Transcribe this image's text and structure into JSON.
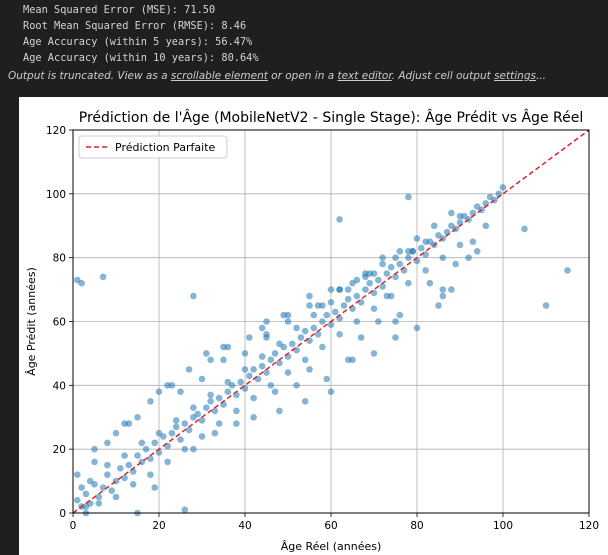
{
  "output": {
    "lines": [
      "Mean Squared Error (MSE): 71.50",
      "Root Mean Squared Error (RMSE): 8.46",
      "Age Accuracy (within 5 years): 56.47%",
      "Age Accuracy (within 10 years): 80.64%"
    ],
    "truncated": {
      "prefix": "Output is truncated. View as a ",
      "link1": "scrollable element",
      "middle1": " or open in a ",
      "link2": "text editor",
      "middle2": ". Adjust cell output ",
      "link3": "settings",
      "suffix": "..."
    }
  },
  "chart_data": {
    "type": "scatter",
    "title": "Prédiction de l'Âge (MobileNetV2 - Single Stage): Âge Prédit vs Âge Réel",
    "xlabel": "Âge Réel (années)",
    "ylabel": "Âge Prédit (années)",
    "xlim": [
      0,
      120
    ],
    "ylim": [
      0,
      120
    ],
    "xticks": [
      0,
      20,
      40,
      60,
      80,
      100,
      120
    ],
    "yticks": [
      0,
      20,
      40,
      60,
      80,
      100,
      120
    ],
    "grid": true,
    "legend_position": "top-left",
    "colors": {
      "points": "#1f77b4",
      "reference": "#d62728"
    },
    "series": [
      {
        "name": "Prédiction Parfaite",
        "kind": "line",
        "style": "dashed",
        "x": [
          0,
          120
        ],
        "y": [
          0,
          120
        ]
      },
      {
        "kind": "scatter",
        "x": [
          1,
          2,
          3,
          4,
          5,
          6,
          7,
          8,
          9,
          10,
          11,
          12,
          13,
          14,
          15,
          16,
          17,
          18,
          19,
          20,
          21,
          22,
          23,
          24,
          25,
          26,
          27,
          28,
          29,
          30,
          31,
          32,
          33,
          34,
          35,
          36,
          37,
          38,
          39,
          40,
          41,
          42,
          43,
          44,
          45,
          46,
          47,
          48,
          49,
          50,
          51,
          52,
          53,
          54,
          55,
          56,
          57,
          58,
          59,
          60,
          61,
          62,
          63,
          64,
          65,
          66,
          67,
          68,
          69,
          70,
          71,
          72,
          73,
          74,
          75,
          76,
          77,
          78,
          79,
          80,
          81,
          82,
          83,
          84,
          85,
          86,
          87,
          88,
          89,
          90,
          91,
          92,
          93,
          94,
          95,
          96,
          97,
          98,
          99,
          100,
          2,
          4,
          6,
          8,
          10,
          12,
          14,
          16,
          18,
          20,
          22,
          24,
          26,
          28,
          30,
          32,
          34,
          36,
          38,
          40,
          42,
          44,
          46,
          48,
          50,
          52,
          54,
          56,
          58,
          60,
          62,
          64,
          66,
          68,
          70,
          72,
          74,
          76,
          78,
          80,
          82,
          84,
          86,
          88,
          90,
          25,
          28,
          30,
          33,
          35,
          38,
          40,
          42,
          45,
          48,
          50,
          52,
          55,
          58,
          60,
          62,
          65,
          68,
          70,
          72,
          75,
          78,
          80,
          85,
          88,
          5,
          8,
          10,
          13,
          15,
          18,
          20,
          23,
          27,
          32,
          36,
          41,
          45,
          50,
          55,
          60,
          65,
          70,
          75,
          82,
          1,
          7,
          3,
          19,
          28,
          31,
          2,
          26,
          44,
          47,
          49,
          54,
          57,
          59,
          62,
          64,
          67,
          69,
          71,
          73,
          76,
          79,
          83,
          86,
          89,
          92,
          94,
          96,
          1,
          5,
          15,
          105,
          110,
          115,
          78,
          62,
          75,
          86,
          90,
          93,
          3,
          12,
          22,
          35,
          45,
          55,
          66
        ],
        "y": [
          4,
          2,
          6,
          3,
          9,
          5,
          8,
          12,
          7,
          10,
          14,
          11,
          15,
          13,
          18,
          16,
          20,
          17,
          22,
          19,
          24,
          21,
          25,
          27,
          23,
          28,
          26,
          30,
          31,
          29,
          33,
          35,
          32,
          36,
          34,
          38,
          40,
          37,
          41,
          39,
          43,
          45,
          42,
          46,
          44,
          48,
          50,
          47,
          52,
          49,
          53,
          51,
          55,
          57,
          54,
          58,
          56,
          60,
          62,
          59,
          63,
          61,
          65,
          67,
          64,
          68,
          66,
          70,
          72,
          69,
          73,
          71,
          75,
          77,
          74,
          78,
          76,
          80,
          82,
          79,
          83,
          81,
          85,
          84,
          87,
          86,
          88,
          90,
          89,
          91,
          93,
          92,
          94,
          96,
          95,
          97,
          99,
          98,
          100,
          102,
          8,
          10,
          3,
          15,
          5,
          18,
          9,
          22,
          12,
          25,
          16,
          29,
          20,
          33,
          24,
          37,
          28,
          41,
          32,
          45,
          36,
          49,
          40,
          53,
          44,
          58,
          48,
          62,
          52,
          66,
          56,
          70,
          60,
          74,
          64,
          78,
          68,
          82,
          72,
          86,
          76,
          90,
          80,
          94,
          84,
          38,
          20,
          42,
          25,
          48,
          28,
          50,
          30,
          55,
          32,
          60,
          40,
          45,
          65,
          38,
          70,
          48,
          75,
          50,
          80,
          55,
          82,
          58,
          65,
          70,
          20,
          22,
          25,
          28,
          30,
          35,
          38,
          40,
          45,
          48,
          52,
          55,
          60,
          62,
          65,
          70,
          72,
          75,
          80,
          85,
          73,
          74,
          0,
          8,
          68,
          50,
          72,
          1,
          58,
          38,
          62,
          35,
          65,
          42,
          70,
          48,
          55,
          75,
          60,
          68,
          62,
          82,
          72,
          70,
          78,
          80,
          82,
          90,
          12,
          16,
          0,
          89,
          65,
          76,
          99,
          92,
          60,
          68,
          93,
          85,
          2,
          28,
          40,
          52,
          56,
          68,
          73
        ]
      }
    ]
  }
}
